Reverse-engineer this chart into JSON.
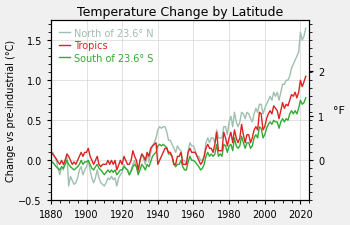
{
  "title": "Temperature Change by Latitude",
  "ylabel_left": "Change vs pre-industrial (°C)",
  "ylabel_right": "°F",
  "ylim": [
    -0.5,
    1.75
  ],
  "xlim": [
    1880,
    2025
  ],
  "xticks": [
    1880,
    1900,
    1920,
    1940,
    1960,
    1980,
    2000,
    2020
  ],
  "yticks_left": [
    -0.5,
    0.0,
    0.5,
    1.0,
    1.5
  ],
  "yticks_right_vals": [
    0,
    1,
    2
  ],
  "bg_color": "#f0f0f0",
  "plot_bg_color": "#ffffff",
  "line_north_color": "#9fbfaf",
  "line_tropics_color": "#dd2222",
  "line_south_color": "#33aa33",
  "legend_north": "North of 23.6° N",
  "legend_tropics": "Tropics",
  "legend_south": "South of 23.6° S",
  "years": [
    1880,
    1881,
    1882,
    1883,
    1884,
    1885,
    1886,
    1887,
    1888,
    1889,
    1890,
    1891,
    1892,
    1893,
    1894,
    1895,
    1896,
    1897,
    1898,
    1899,
    1900,
    1901,
    1902,
    1903,
    1904,
    1905,
    1906,
    1907,
    1908,
    1909,
    1910,
    1911,
    1912,
    1913,
    1914,
    1915,
    1916,
    1917,
    1918,
    1919,
    1920,
    1921,
    1922,
    1923,
    1924,
    1925,
    1926,
    1927,
    1928,
    1929,
    1930,
    1931,
    1932,
    1933,
    1934,
    1935,
    1936,
    1937,
    1938,
    1939,
    1940,
    1941,
    1942,
    1943,
    1944,
    1945,
    1946,
    1947,
    1948,
    1949,
    1950,
    1951,
    1952,
    1953,
    1954,
    1955,
    1956,
    1957,
    1958,
    1959,
    1960,
    1961,
    1962,
    1963,
    1964,
    1965,
    1966,
    1967,
    1968,
    1969,
    1970,
    1971,
    1972,
    1973,
    1974,
    1975,
    1976,
    1977,
    1978,
    1979,
    1980,
    1981,
    1982,
    1983,
    1984,
    1985,
    1986,
    1987,
    1988,
    1989,
    1990,
    1991,
    1992,
    1993,
    1994,
    1995,
    1996,
    1997,
    1998,
    1999,
    2000,
    2001,
    2002,
    2003,
    2004,
    2005,
    2006,
    2007,
    2008,
    2009,
    2010,
    2011,
    2012,
    2013,
    2014,
    2015,
    2016,
    2017,
    2018,
    2019,
    2020,
    2021,
    2022,
    2023
  ],
  "north": [
    0.08,
    0.1,
    0.05,
    0.0,
    -0.1,
    -0.18,
    -0.08,
    -0.12,
    0.0,
    0.05,
    -0.32,
    -0.2,
    -0.25,
    -0.3,
    -0.28,
    -0.22,
    -0.12,
    -0.08,
    -0.18,
    -0.12,
    -0.08,
    0.0,
    -0.12,
    -0.22,
    -0.28,
    -0.22,
    -0.12,
    -0.22,
    -0.28,
    -0.3,
    -0.32,
    -0.28,
    -0.22,
    -0.24,
    -0.2,
    -0.24,
    -0.22,
    -0.32,
    -0.22,
    -0.18,
    -0.15,
    -0.05,
    -0.1,
    -0.12,
    -0.18,
    -0.12,
    -0.05,
    0.0,
    -0.08,
    -0.15,
    0.0,
    0.08,
    0.02,
    -0.05,
    0.08,
    -0.02,
    0.1,
    0.18,
    0.22,
    0.28,
    0.38,
    0.42,
    0.4,
    0.42,
    0.42,
    0.36,
    0.25,
    0.25,
    0.2,
    0.15,
    0.1,
    0.18,
    0.14,
    0.12,
    0.0,
    0.0,
    -0.05,
    0.12,
    0.22,
    0.18,
    0.18,
    0.12,
    0.05,
    0.05,
    0.0,
    0.0,
    0.05,
    0.22,
    0.28,
    0.22,
    0.28,
    0.28,
    0.22,
    0.38,
    0.28,
    0.28,
    0.28,
    0.42,
    0.42,
    0.32,
    0.48,
    0.55,
    0.42,
    0.6,
    0.48,
    0.42,
    0.48,
    0.6,
    0.58,
    0.52,
    0.6,
    0.58,
    0.52,
    0.48,
    0.58,
    0.65,
    0.6,
    0.7,
    0.7,
    0.58,
    0.65,
    0.7,
    0.75,
    0.8,
    0.75,
    0.85,
    0.8,
    0.85,
    0.75,
    0.85,
    0.95,
    0.95,
    1.0,
    1.0,
    1.05,
    1.15,
    1.2,
    1.25,
    1.3,
    1.35,
    1.6,
    1.5,
    1.55,
    1.65
  ],
  "tropics": [
    0.1,
    0.08,
    0.05,
    0.02,
    -0.02,
    -0.05,
    0.0,
    -0.05,
    0.0,
    0.08,
    0.05,
    0.0,
    -0.05,
    -0.02,
    -0.05,
    0.0,
    0.05,
    0.1,
    0.05,
    0.1,
    0.1,
    0.15,
    0.05,
    0.0,
    -0.05,
    0.0,
    0.05,
    -0.05,
    -0.08,
    -0.05,
    -0.05,
    -0.05,
    0.0,
    -0.05,
    0.0,
    -0.05,
    0.0,
    -0.12,
    -0.06,
    0.0,
    -0.05,
    0.05,
    0.0,
    -0.05,
    -0.05,
    0.0,
    0.12,
    0.05,
    0.0,
    -0.12,
    0.0,
    0.08,
    0.05,
    0.0,
    0.1,
    0.05,
    0.15,
    0.18,
    0.2,
    0.22,
    -0.05,
    0.0,
    0.05,
    0.1,
    0.15,
    0.15,
    0.1,
    0.1,
    0.05,
    -0.05,
    -0.05,
    0.05,
    0.05,
    0.1,
    -0.05,
    -0.05,
    -0.05,
    0.1,
    0.15,
    0.1,
    0.1,
    0.1,
    0.05,
    0.0,
    -0.05,
    -0.02,
    0.05,
    0.15,
    0.2,
    0.15,
    0.15,
    0.1,
    0.2,
    0.35,
    0.12,
    0.12,
    0.12,
    0.35,
    0.28,
    0.18,
    0.28,
    0.35,
    0.22,
    0.38,
    0.28,
    0.22,
    0.28,
    0.45,
    0.32,
    0.22,
    0.32,
    0.32,
    0.22,
    0.28,
    0.38,
    0.42,
    0.38,
    0.6,
    0.58,
    0.38,
    0.42,
    0.52,
    0.58,
    0.62,
    0.58,
    0.68,
    0.65,
    0.62,
    0.52,
    0.62,
    0.72,
    0.65,
    0.7,
    0.68,
    0.75,
    0.82,
    0.8,
    0.85,
    0.78,
    0.85,
    1.0,
    0.92,
    0.98,
    1.05
  ],
  "south": [
    -0.05,
    -0.02,
    -0.05,
    -0.08,
    -0.1,
    -0.12,
    -0.08,
    -0.1,
    -0.05,
    0.0,
    -0.05,
    -0.08,
    -0.1,
    -0.12,
    -0.1,
    -0.08,
    -0.05,
    0.0,
    -0.05,
    -0.02,
    -0.02,
    0.0,
    -0.05,
    -0.1,
    -0.12,
    -0.08,
    -0.05,
    -0.1,
    -0.12,
    -0.15,
    -0.18,
    -0.15,
    -0.12,
    -0.15,
    -0.12,
    -0.15,
    -0.12,
    -0.18,
    -0.15,
    -0.12,
    -0.12,
    -0.08,
    -0.1,
    -0.12,
    -0.18,
    -0.14,
    -0.08,
    -0.05,
    -0.08,
    -0.18,
    -0.12,
    -0.05,
    -0.08,
    -0.12,
    -0.05,
    -0.08,
    -0.02,
    0.05,
    0.08,
    0.1,
    0.18,
    0.2,
    0.18,
    0.2,
    0.18,
    0.16,
    0.08,
    0.08,
    0.05,
    -0.05,
    -0.08,
    -0.05,
    -0.05,
    0.0,
    -0.08,
    -0.12,
    -0.12,
    -0.02,
    0.05,
    0.0,
    0.0,
    -0.02,
    -0.05,
    -0.08,
    -0.12,
    -0.1,
    -0.05,
    0.05,
    0.1,
    0.05,
    0.08,
    0.05,
    0.08,
    0.2,
    0.05,
    0.08,
    0.05,
    0.2,
    0.18,
    0.1,
    0.18,
    0.2,
    0.12,
    0.28,
    0.18,
    0.15,
    0.18,
    0.3,
    0.22,
    0.15,
    0.22,
    0.22,
    0.15,
    0.18,
    0.28,
    0.32,
    0.28,
    0.42,
    0.4,
    0.28,
    0.32,
    0.4,
    0.45,
    0.48,
    0.45,
    0.5,
    0.48,
    0.48,
    0.4,
    0.48,
    0.52,
    0.48,
    0.52,
    0.5,
    0.58,
    0.62,
    0.58,
    0.62,
    0.58,
    0.65,
    0.75,
    0.7,
    0.72,
    0.78
  ]
}
